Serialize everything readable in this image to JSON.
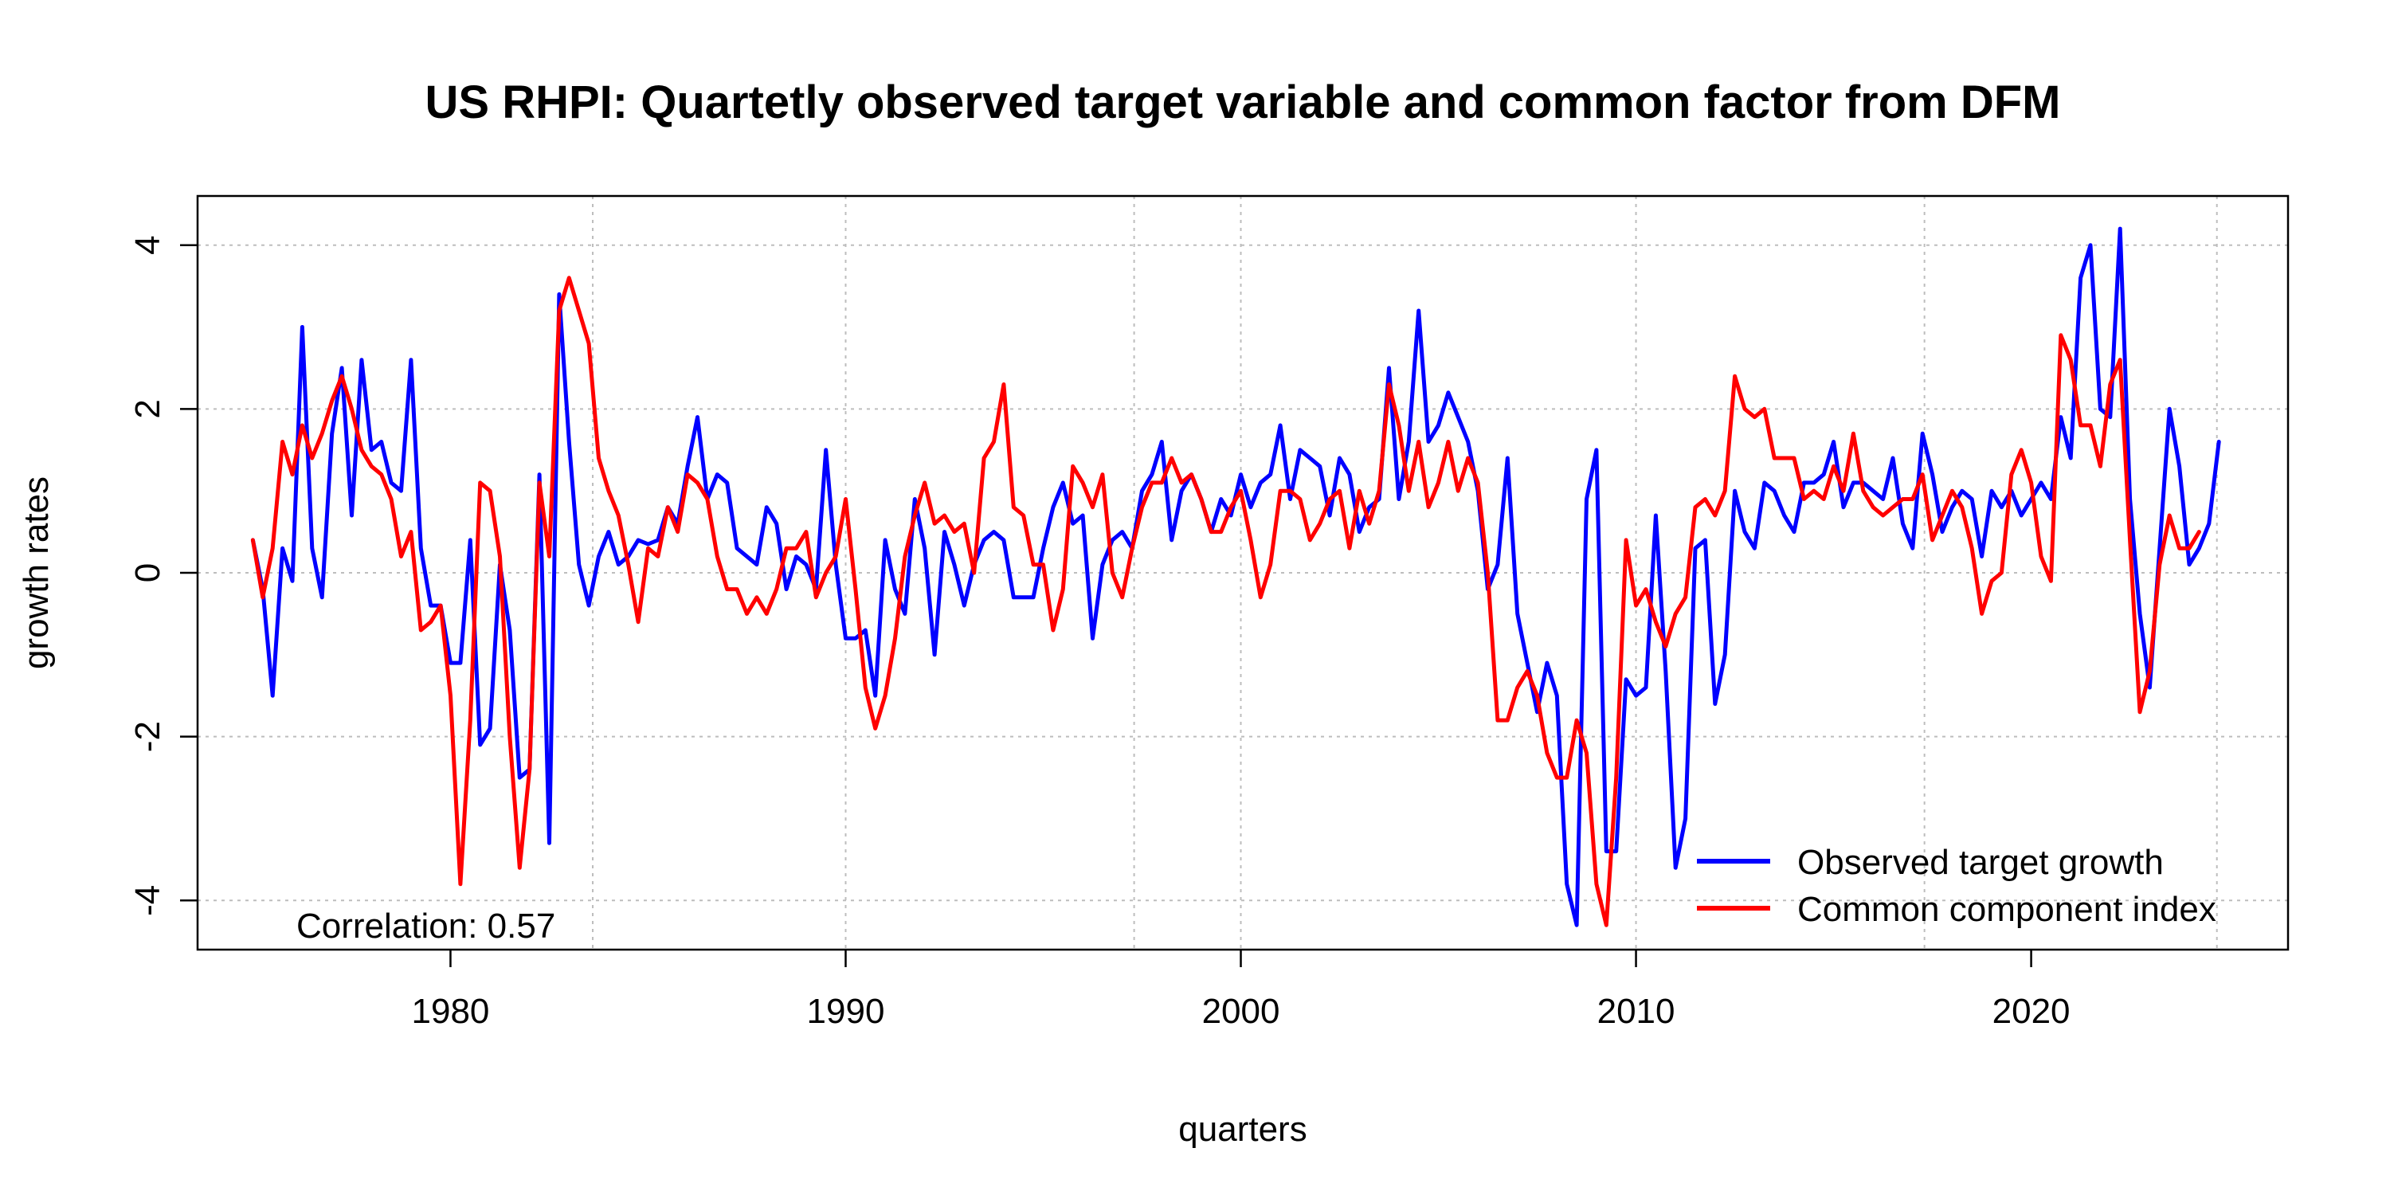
{
  "chart_data": {
    "type": "line",
    "title": "US RHPI: Quartetly observed target variable and common factor from DFM",
    "xlabel": "quarters",
    "ylabel": "growth rates",
    "xlim": [
      1973.6,
      2026.5
    ],
    "ylim": [
      -4.6,
      4.6
    ],
    "x_ticks": [
      1980,
      1990,
      2000,
      2010,
      2020
    ],
    "y_ticks": [
      -4,
      -2,
      0,
      2,
      4
    ],
    "grid": true,
    "grid_x_at": [
      1983.6,
      1990,
      1997.3,
      2000,
      2010,
      2017.3,
      2024.7
    ],
    "grid_y_at": [
      -4,
      -2,
      0,
      2,
      4
    ],
    "legend_position": "bottom-right",
    "annotation": "Correlation: 0.57",
    "colors": {
      "observed": "#0000ff",
      "common": "#ff0000"
    },
    "x_start": 1975.0,
    "x_step": 0.25,
    "series": [
      {
        "name": "Observed target growth",
        "color": "#0000ff",
        "values": [
          0.4,
          -0.2,
          -1.5,
          0.3,
          -0.1,
          3.0,
          0.3,
          -0.3,
          1.7,
          2.5,
          0.7,
          2.6,
          1.5,
          1.6,
          1.1,
          1.0,
          2.6,
          0.3,
          -0.4,
          -0.4,
          -1.1,
          -1.1,
          0.4,
          -2.1,
          -1.9,
          0.1,
          -0.7,
          -2.5,
          -2.4,
          1.2,
          -3.3,
          3.4,
          1.6,
          0.1,
          -0.4,
          0.2,
          0.5,
          0.1,
          0.2,
          0.4,
          0.35,
          0.4,
          0.8,
          0.6,
          1.3,
          1.9,
          0.9,
          1.2,
          1.1,
          0.3,
          0.2,
          0.1,
          0.8,
          0.6,
          -0.2,
          0.2,
          0.1,
          -0.2,
          1.5,
          0.1,
          -0.8,
          -0.8,
          -0.7,
          -1.5,
          0.4,
          -0.2,
          -0.5,
          0.9,
          0.3,
          -1.0,
          0.5,
          0.1,
          -0.4,
          0.1,
          0.4,
          0.5,
          0.4,
          -0.3,
          -0.3,
          -0.3,
          0.3,
          0.8,
          1.1,
          0.6,
          0.7,
          -0.8,
          0.1,
          0.4,
          0.5,
          0.3,
          1.0,
          1.2,
          1.6,
          0.4,
          1.0,
          1.2,
          0.9,
          0.5,
          0.9,
          0.7,
          1.2,
          0.8,
          1.1,
          1.2,
          1.8,
          0.9,
          1.5,
          1.4,
          1.3,
          0.7,
          1.4,
          1.2,
          0.5,
          0.8,
          0.9,
          2.5,
          0.9,
          1.6,
          3.2,
          1.6,
          1.8,
          2.2,
          1.9,
          1.6,
          1.0,
          -0.2,
          0.1,
          1.4,
          -0.5,
          -1.1,
          -1.7,
          -1.1,
          -1.5,
          -3.8,
          -4.3,
          0.9,
          1.5,
          -3.4,
          -3.4,
          -1.3,
          -1.5,
          -1.4,
          0.7,
          -1.2,
          -3.6,
          -3.0,
          0.3,
          0.4,
          -1.6,
          -1.0,
          1.0,
          0.5,
          0.3,
          1.1,
          1.0,
          0.7,
          0.5,
          1.1,
          1.1,
          1.2,
          1.6,
          0.8,
          1.1,
          1.1,
          1.0,
          0.9,
          1.4,
          0.6,
          0.3,
          1.7,
          1.2,
          0.5,
          0.8,
          1.0,
          0.9,
          0.2,
          1.0,
          0.8,
          1.0,
          0.7,
          0.9,
          1.1,
          0.9,
          1.9,
          1.4,
          3.6,
          4.0,
          2.0,
          1.9,
          4.2,
          0.9,
          -0.5,
          -1.4,
          0.3,
          2.0,
          1.3,
          0.1,
          0.3,
          0.6,
          1.6
        ]
      },
      {
        "name": "Common component index",
        "color": "#ff0000",
        "values": [
          0.4,
          -0.3,
          0.3,
          1.6,
          1.2,
          1.8,
          1.4,
          1.7,
          2.1,
          2.4,
          2.0,
          1.5,
          1.3,
          1.2,
          0.9,
          0.2,
          0.5,
          -0.7,
          -0.6,
          -0.4,
          -1.5,
          -3.8,
          -1.8,
          1.1,
          1.0,
          0.2,
          -2.0,
          -3.6,
          -2.4,
          1.1,
          0.2,
          3.2,
          3.6,
          3.2,
          2.8,
          1.4,
          1.0,
          0.7,
          0.1,
          -0.6,
          0.3,
          0.2,
          0.8,
          0.5,
          1.2,
          1.1,
          0.9,
          0.2,
          -0.2,
          -0.2,
          -0.5,
          -0.3,
          -0.5,
          -0.2,
          0.3,
          0.3,
          0.5,
          -0.3,
          0.0,
          0.2,
          0.9,
          -0.2,
          -1.4,
          -1.9,
          -1.5,
          -0.8,
          0.2,
          0.7,
          1.1,
          0.6,
          0.7,
          0.5,
          0.6,
          0.0,
          1.4,
          1.6,
          2.3,
          0.8,
          0.7,
          0.1,
          0.1,
          -0.7,
          -0.2,
          1.3,
          1.1,
          0.8,
          1.2,
          0.0,
          -0.3,
          0.3,
          0.8,
          1.1,
          1.1,
          1.4,
          1.1,
          1.2,
          0.9,
          0.5,
          0.5,
          0.8,
          1.0,
          0.4,
          -0.3,
          0.1,
          1.0,
          1.0,
          0.9,
          0.4,
          0.6,
          0.9,
          1.0,
          0.3,
          1.0,
          0.6,
          1.0,
          2.3,
          1.8,
          1.0,
          1.6,
          0.8,
          1.1,
          1.6,
          1.0,
          1.4,
          1.1,
          0.0,
          -1.8,
          -1.8,
          -1.4,
          -1.2,
          -1.5,
          -2.2,
          -2.5,
          -2.5,
          -1.8,
          -2.2,
          -3.8,
          -4.3,
          -2.5,
          0.4,
          -0.4,
          -0.2,
          -0.6,
          -0.9,
          -0.5,
          -0.3,
          0.8,
          0.9,
          0.7,
          1.0,
          2.4,
          2.0,
          1.9,
          2.0,
          1.4,
          1.4,
          1.4,
          0.9,
          1.0,
          0.9,
          1.3,
          1.0,
          1.7,
          1.0,
          0.8,
          0.7,
          0.8,
          0.9,
          0.9,
          1.2,
          0.4,
          0.7,
          1.0,
          0.8,
          0.3,
          -0.5,
          -0.1,
          0.0,
          1.2,
          1.5,
          1.1,
          0.2,
          -0.1,
          2.9,
          2.6,
          1.8,
          1.8,
          1.3,
          2.3,
          2.6,
          0.4,
          -1.7,
          -1.2,
          0.1,
          0.7,
          0.3,
          0.3,
          0.5
        ]
      }
    ]
  }
}
